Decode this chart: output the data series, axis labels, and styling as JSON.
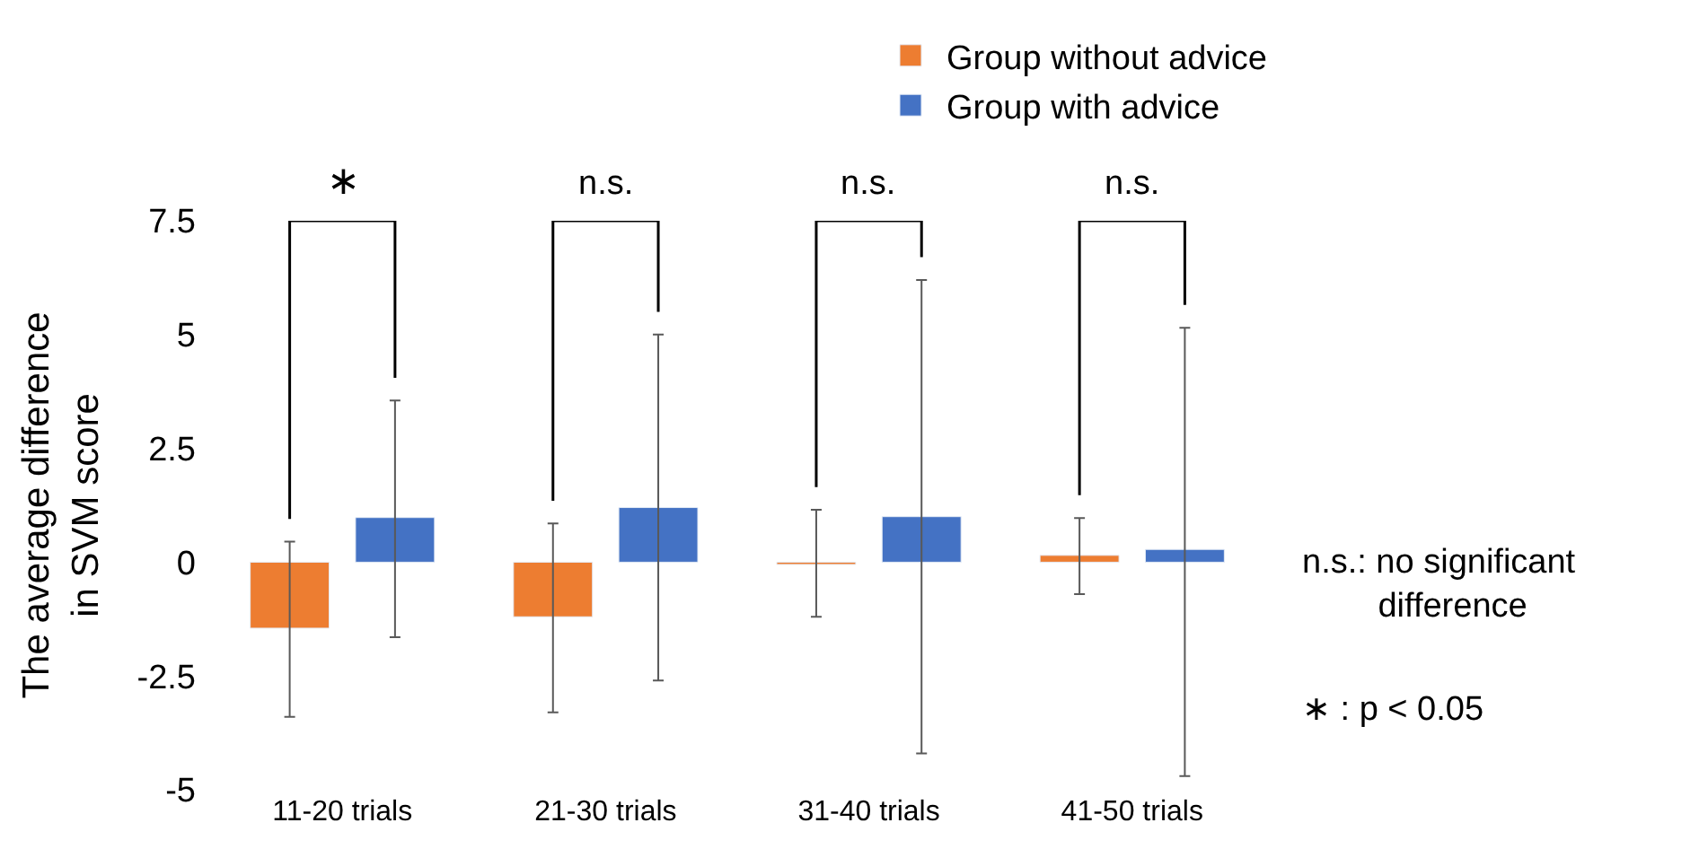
{
  "chart_data": {
    "type": "bar",
    "ylabel": "The average difference\nin SVM score",
    "categories": [
      "11-20 trials",
      "21-30 trials",
      "31-40 trials",
      "41-50 trials"
    ],
    "series": [
      {
        "name": "Group without advice",
        "color": "#ed7d31",
        "values": [
          -1.45,
          -1.2,
          -0.05,
          0.15
        ],
        "errors": [
          [
            -3.4,
            0.45
          ],
          [
            -3.3,
            0.85
          ],
          [
            -1.2,
            1.15
          ],
          [
            -0.7,
            0.97
          ]
        ]
      },
      {
        "name": "Group with advice",
        "color": "#4472c4",
        "values": [
          0.98,
          1.2,
          1.0,
          0.28
        ],
        "errors": [
          [
            -1.65,
            3.55
          ],
          [
            -2.6,
            5.0
          ],
          [
            -4.2,
            6.2
          ],
          [
            -4.7,
            5.15
          ]
        ]
      }
    ],
    "ylim": [
      -5,
      7.5
    ],
    "yticks": [
      -5,
      -2.5,
      0,
      2.5,
      5,
      7.5
    ],
    "legend": "top right",
    "annotations": [
      "∗",
      "n.s.",
      "n.s.",
      "n.s.",
      "n.s.: no significant\n        difference",
      "∗ : p < 0.05"
    ]
  }
}
